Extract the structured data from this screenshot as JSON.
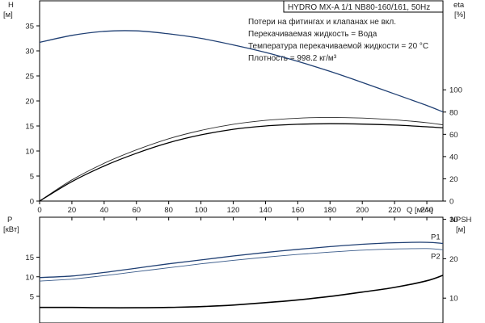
{
  "chart_data": [
    {
      "type": "line",
      "title": "HYDRO MX-A 1/1 NB80-160/161, 50Hz",
      "xlabel": "Q",
      "xunit": "[м³/ч]",
      "ylabel_left": "H",
      "yunit_left": "[м]",
      "ylabel_right": "eta",
      "yunit_right": "[%]",
      "xlim": [
        0,
        250
      ],
      "ylim_left": [
        0,
        40
      ],
      "ylim_right": [
        0,
        100
      ],
      "x_ticks": [
        "0",
        "20",
        "40",
        "60",
        "80",
        "100",
        "120",
        "140",
        "160",
        "180",
        "200",
        "220",
        "240"
      ],
      "y_ticks_left": [
        "0",
        "5",
        "10",
        "15",
        "20",
        "25",
        "30",
        "35"
      ],
      "y_ticks_right": [
        "0",
        "20",
        "40",
        "60",
        "80",
        "100"
      ],
      "notes": [
        "Потери на фитингах и клапанах не вкл.",
        "Перекачиваемая жидкость = Вода",
        "Температура перекачиваемой жидкости = 20 °C",
        "Плотность = 998.2 кг/м³"
      ],
      "grid": false,
      "series": [
        {
          "axis": "left",
          "color": "#1f3f73",
          "x": [
            0,
            20,
            40,
            60,
            80,
            100,
            120,
            140,
            160,
            180,
            200,
            220,
            240,
            250
          ],
          "values": [
            31.7,
            33.1,
            33.9,
            34.0,
            33.4,
            32.5,
            31.2,
            29.7,
            27.9,
            25.9,
            23.7,
            21.4,
            19.1,
            17.8
          ]
        },
        {
          "axis": "right",
          "color": "#2b2b2b",
          "x": [
            0,
            20,
            40,
            60,
            80,
            100,
            120,
            140,
            160,
            180,
            200,
            220,
            240,
            250
          ],
          "values": [
            0,
            19,
            34,
            46,
            56,
            63.5,
            69,
            72.5,
            74.5,
            75.2,
            74.6,
            73,
            70.5,
            68.5
          ]
        },
        {
          "axis": "right",
          "color": "#000000",
          "x": [
            0,
            20,
            40,
            60,
            80,
            100,
            120,
            140,
            160,
            180,
            200,
            220,
            240,
            250
          ],
          "values": [
            0,
            17.5,
            31.5,
            43,
            52.5,
            59.5,
            64.5,
            67.5,
            69,
            69.5,
            69.2,
            68.3,
            66.8,
            65.8
          ]
        }
      ]
    },
    {
      "type": "line",
      "ylabel_left": "P",
      "yunit_left": "[кВт]",
      "ylabel_right": "NPSH",
      "yunit_right": "[м]",
      "xlim": [
        0,
        250
      ],
      "ylim_left": [
        0,
        20
      ],
      "ylim_right": [
        0,
        40
      ],
      "y_ticks_left": [
        "5",
        "10",
        "15"
      ],
      "y_ticks_right": [
        "10",
        "20",
        "30"
      ],
      "grid": false,
      "series": [
        {
          "name": "P1",
          "axis": "left",
          "color": "#1f3f73",
          "x": [
            0,
            20,
            40,
            60,
            80,
            100,
            120,
            140,
            160,
            180,
            200,
            220,
            240,
            250
          ],
          "values": [
            9.8,
            10.2,
            11.1,
            12.2,
            13.3,
            14.3,
            15.3,
            16.2,
            17.0,
            17.7,
            18.3,
            18.7,
            18.8,
            18.5
          ]
        },
        {
          "name": "P2",
          "axis": "left",
          "color": "#3a5b8a",
          "x": [
            0,
            20,
            40,
            60,
            80,
            100,
            120,
            140,
            160,
            180,
            200,
            220,
            240,
            250
          ],
          "values": [
            8.9,
            9.4,
            10.3,
            11.3,
            12.3,
            13.3,
            14.2,
            15.0,
            15.7,
            16.3,
            16.8,
            17.1,
            17.2,
            16.9
          ]
        },
        {
          "axis": "right",
          "color": "#000000",
          "x": [
            0,
            20,
            40,
            60,
            80,
            100,
            120,
            140,
            160,
            180,
            200,
            220,
            240,
            250
          ],
          "values": [
            4.4,
            4.4,
            4.3,
            4.3,
            4.4,
            4.6,
            5.0,
            5.6,
            6.3,
            7.2,
            8.3,
            9.5,
            11.2,
            12.6
          ]
        }
      ]
    }
  ]
}
